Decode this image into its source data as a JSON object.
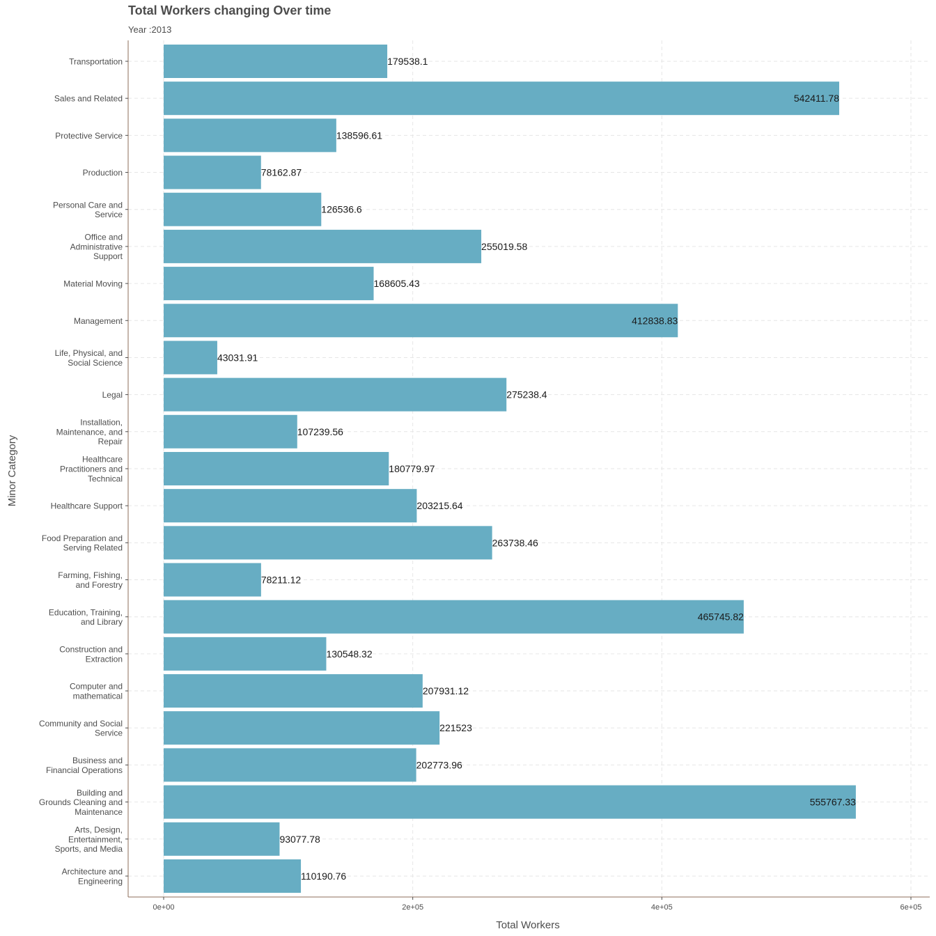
{
  "chart_data": {
    "type": "bar",
    "orientation": "horizontal",
    "title": "Total Workers changing Over time",
    "subtitle": "Year :2013",
    "xlabel": "Total Workers",
    "ylabel": "Minor Category",
    "xlim": [
      0,
      600000
    ],
    "x_ticks": [
      0,
      200000,
      400000,
      600000
    ],
    "x_tick_labels": [
      "0e+00",
      "2e+05",
      "4e+05",
      "6e+05"
    ],
    "grid": true,
    "bar_color": "#67adc3",
    "categories": [
      "Transportation",
      "Sales and Related",
      "Protective Service",
      "Production",
      "Personal Care and\nService",
      "Office and\nAdministrative\nSupport",
      "Material Moving",
      "Management",
      "Life, Physical, and\nSocial Science",
      "Legal",
      "Installation,\nMaintenance, and\nRepair",
      "Healthcare\nPractitioners and\nTechnical",
      "Healthcare Support",
      "Food Preparation and\nServing Related",
      "Farming, Fishing,\nand Forestry",
      "Education, Training,\nand Library",
      "Construction and\nExtraction",
      "Computer and\nmathematical",
      "Community and Social\nService",
      "Business and\nFinancial Operations",
      "Building and\nGrounds Cleaning and\nMaintenance",
      "Arts, Design,\nEntertainment,\nSports, and Media",
      "Architecture and\nEngineering"
    ],
    "values": [
      179538.1,
      542411.78,
      138596.61,
      78162.87,
      126536.6,
      255019.58,
      168605.43,
      412838.83,
      43031.91,
      275238.4,
      107239.56,
      180779.97,
      203215.64,
      263738.46,
      78211.12,
      465745.82,
      130548.32,
      207931.12,
      221523,
      202773.96,
      555767.33,
      93077.78,
      110190.76
    ],
    "value_labels": [
      "179538.1",
      "542411.78",
      "138596.61",
      "78162.87",
      "126536.6",
      "255019.58",
      "168605.43",
      "412838.83",
      "43031.91",
      "275238.4",
      "107239.56",
      "180779.97",
      "203215.64",
      "263738.46",
      "78211.12",
      "465745.82",
      "130548.32",
      "207931.12",
      "221523",
      "202773.96",
      "555767.33",
      "93077.78",
      "110190.76"
    ]
  }
}
